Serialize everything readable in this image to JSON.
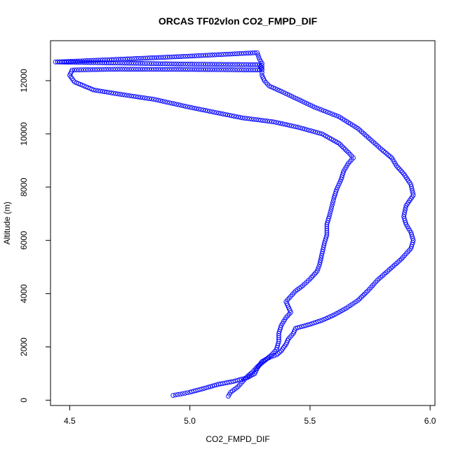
{
  "chart_data": {
    "type": "scatter",
    "title": "ORCAS TF02vlon CO2_FMPD_DIF",
    "xlabel": "CO2_FMPD_DIF",
    "ylabel": "Altitude (m)",
    "xlim": [
      4.42,
      6.02
    ],
    "ylim": [
      -200,
      13500
    ],
    "xticks": [
      4.5,
      5.0,
      5.5,
      6.0
    ],
    "xtick_labels": [
      "4.5",
      "5.0",
      "5.5",
      "6.0"
    ],
    "yticks": [
      0,
      2000,
      4000,
      6000,
      8000,
      10000,
      12000
    ],
    "ytick_labels": [
      "0",
      "2000",
      "4000",
      "6000",
      "8000",
      "10000",
      "12000"
    ],
    "grid": false,
    "marker": "open-circle",
    "series": [
      {
        "color": "#0000ff",
        "path": [
          [
            4.93,
            180
          ],
          [
            4.98,
            260
          ],
          [
            5.0,
            300
          ],
          [
            5.05,
            420
          ],
          [
            5.12,
            600
          ],
          [
            5.18,
            700
          ],
          [
            5.24,
            850
          ],
          [
            5.27,
            1000
          ],
          [
            5.28,
            1200
          ],
          [
            5.3,
            1450
          ],
          [
            5.33,
            1600
          ],
          [
            5.36,
            1700
          ],
          [
            5.38,
            1850
          ],
          [
            5.4,
            2100
          ],
          [
            5.41,
            2300
          ],
          [
            5.43,
            2500
          ],
          [
            5.44,
            2700
          ],
          [
            5.5,
            2850
          ],
          [
            5.55,
            3000
          ],
          [
            5.6,
            3200
          ],
          [
            5.65,
            3450
          ],
          [
            5.7,
            3750
          ],
          [
            5.74,
            4100
          ],
          [
            5.78,
            4500
          ],
          [
            5.83,
            4900
          ],
          [
            5.88,
            5300
          ],
          [
            5.92,
            5700
          ],
          [
            5.93,
            6000
          ],
          [
            5.92,
            6300
          ],
          [
            5.9,
            6600
          ],
          [
            5.89,
            6900
          ],
          [
            5.9,
            7300
          ],
          [
            5.93,
            7700
          ],
          [
            5.92,
            8100
          ],
          [
            5.89,
            8500
          ],
          [
            5.86,
            8800
          ],
          [
            5.84,
            9100
          ],
          [
            5.8,
            9400
          ],
          [
            5.75,
            9800
          ],
          [
            5.7,
            10200
          ],
          [
            5.62,
            10650
          ],
          [
            5.52,
            11000
          ],
          [
            5.45,
            11300
          ],
          [
            5.38,
            11600
          ],
          [
            5.33,
            11800
          ],
          [
            5.31,
            12000
          ],
          [
            5.3,
            12200
          ],
          [
            5.3,
            12400
          ],
          [
            5.29,
            12600
          ],
          [
            5.0,
            12620
          ],
          [
            4.7,
            12660
          ],
          [
            4.44,
            12700
          ],
          [
            4.75,
            12820
          ],
          [
            5.0,
            12920
          ],
          [
            5.28,
            13050
          ],
          [
            5.29,
            12800
          ],
          [
            5.3,
            12650
          ],
          [
            5.3,
            12400
          ],
          [
            5.0,
            12420
          ],
          [
            4.7,
            12430
          ],
          [
            4.51,
            12400
          ],
          [
            4.5,
            12200
          ],
          [
            4.52,
            11950
          ],
          [
            4.56,
            11800
          ],
          [
            4.6,
            11650
          ],
          [
            4.7,
            11500
          ],
          [
            4.85,
            11300
          ],
          [
            5.0,
            11000
          ],
          [
            5.12,
            10780
          ],
          [
            5.22,
            10600
          ],
          [
            5.35,
            10450
          ],
          [
            5.45,
            10250
          ],
          [
            5.55,
            10000
          ],
          [
            5.62,
            9650
          ],
          [
            5.66,
            9300
          ],
          [
            5.68,
            9100
          ],
          [
            5.66,
            8900
          ],
          [
            5.64,
            8600
          ],
          [
            5.63,
            8300
          ],
          [
            5.61,
            7900
          ],
          [
            5.6,
            7600
          ],
          [
            5.59,
            7250
          ],
          [
            5.58,
            6900
          ],
          [
            5.57,
            6600
          ],
          [
            5.57,
            6200
          ],
          [
            5.56,
            5900
          ],
          [
            5.55,
            5500
          ],
          [
            5.54,
            5100
          ],
          [
            5.53,
            4850
          ],
          [
            5.5,
            4550
          ],
          [
            5.47,
            4300
          ],
          [
            5.44,
            4100
          ],
          [
            5.42,
            3900
          ],
          [
            5.4,
            3700
          ],
          [
            5.41,
            3500
          ],
          [
            5.42,
            3300
          ],
          [
            5.4,
            3100
          ],
          [
            5.38,
            2800
          ],
          [
            5.37,
            2500
          ],
          [
            5.37,
            2200
          ],
          [
            5.36,
            1900
          ],
          [
            5.34,
            1700
          ],
          [
            5.32,
            1550
          ],
          [
            5.3,
            1400
          ],
          [
            5.28,
            1250
          ],
          [
            5.26,
            1050
          ],
          [
            5.24,
            900
          ],
          [
            5.22,
            700
          ],
          [
            5.2,
            500
          ],
          [
            5.17,
            300
          ],
          [
            5.16,
            150
          ]
        ]
      }
    ]
  }
}
